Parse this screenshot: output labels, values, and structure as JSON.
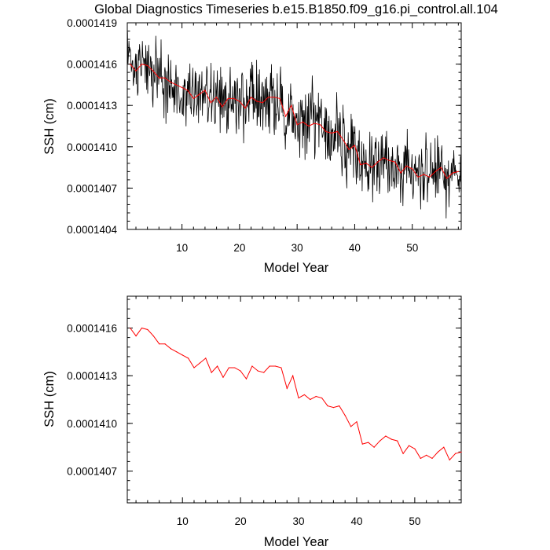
{
  "title": "Global Diagnostics Timeseries b.e15.B1850.f09_g16.pi_control.all.104",
  "colors": {
    "monthly": "#000000",
    "annual": "#ff0000",
    "frame": "#000000",
    "background": "#ffffff"
  },
  "chart_data": [
    {
      "type": "line",
      "name": "monthly-and-annual",
      "xlabel": "Model Year",
      "ylabel": "SSH (cm)",
      "xlim": [
        0.5,
        58.5
      ],
      "ylim": [
        0.0001404,
        0.0001419
      ],
      "xticks": [
        10,
        20,
        30,
        40,
        50
      ],
      "xtick_labels": [
        "10",
        "20",
        "30",
        "40",
        "50"
      ],
      "yticks": [
        0.0001404,
        0.0001407,
        0.000141,
        0.0001413,
        0.0001416,
        0.0001419
      ],
      "ytick_labels": [
        "0.0001404",
        "0.0001407",
        "0.0001410",
        "0.0001413",
        "0.0001416",
        "0.0001419"
      ],
      "series": [
        {
          "name": "monthly",
          "color": "#000000",
          "note": "monthly values: noisy around the annual mean (about ±0.0000003 cm)"
        },
        {
          "name": "annual",
          "color": "#ff0000",
          "note": "annual mean, same values as the lower panel"
        }
      ]
    },
    {
      "type": "line",
      "name": "annual",
      "xlabel": "Model Year",
      "ylabel": "SSH (cm)",
      "xlim": [
        0.5,
        58
      ],
      "ylim": [
        0.0001405,
        0.0001418
      ],
      "xticks": [
        10,
        20,
        30,
        40,
        50
      ],
      "xtick_labels": [
        "10",
        "20",
        "30",
        "40",
        "50"
      ],
      "yticks": [
        0.0001407,
        0.000141,
        0.0001413,
        0.0001416
      ],
      "ytick_labels": [
        "0.0001407",
        "0.0001410",
        "0.0001413",
        "0.0001416"
      ],
      "series": [
        {
          "name": "annual",
          "color": "#ff0000",
          "x": [
            1,
            2,
            3,
            4,
            5,
            6,
            7,
            8,
            9,
            10,
            11,
            12,
            13,
            14,
            15,
            16,
            17,
            18,
            19,
            20,
            21,
            22,
            23,
            24,
            25,
            26,
            27,
            28,
            29,
            30,
            31,
            32,
            33,
            34,
            35,
            36,
            37,
            38,
            39,
            40,
            41,
            42,
            43,
            44,
            45,
            46,
            47,
            48,
            49,
            50,
            51,
            52,
            53,
            54,
            55,
            56,
            57,
            58
          ],
          "values": [
            0.0001416,
            0.00014155,
            0.0001416,
            0.00014159,
            0.00014155,
            0.0001415,
            0.0001415,
            0.00014147,
            0.00014145,
            0.00014143,
            0.00014141,
            0.00014135,
            0.00014138,
            0.00014141,
            0.00014132,
            0.00014136,
            0.00014129,
            0.00014135,
            0.00014135,
            0.00014133,
            0.00014128,
            0.00014136,
            0.00014133,
            0.00014132,
            0.00014136,
            0.00014136,
            0.00014135,
            0.00014122,
            0.0001413,
            0.00014116,
            0.00014118,
            0.00014115,
            0.00014117,
            0.00014116,
            0.00014111,
            0.0001411,
            0.00014111,
            0.00014105,
            0.00014098,
            0.00014101,
            0.00014087,
            0.00014088,
            0.00014085,
            0.00014089,
            0.00014092,
            0.0001409,
            0.00014089,
            0.00014081,
            0.00014086,
            0.00014084,
            0.00014078,
            0.0001408,
            0.00014078,
            0.00014082,
            0.00014085,
            0.00014077,
            0.00014081,
            0.00014082
          ]
        }
      ]
    }
  ]
}
